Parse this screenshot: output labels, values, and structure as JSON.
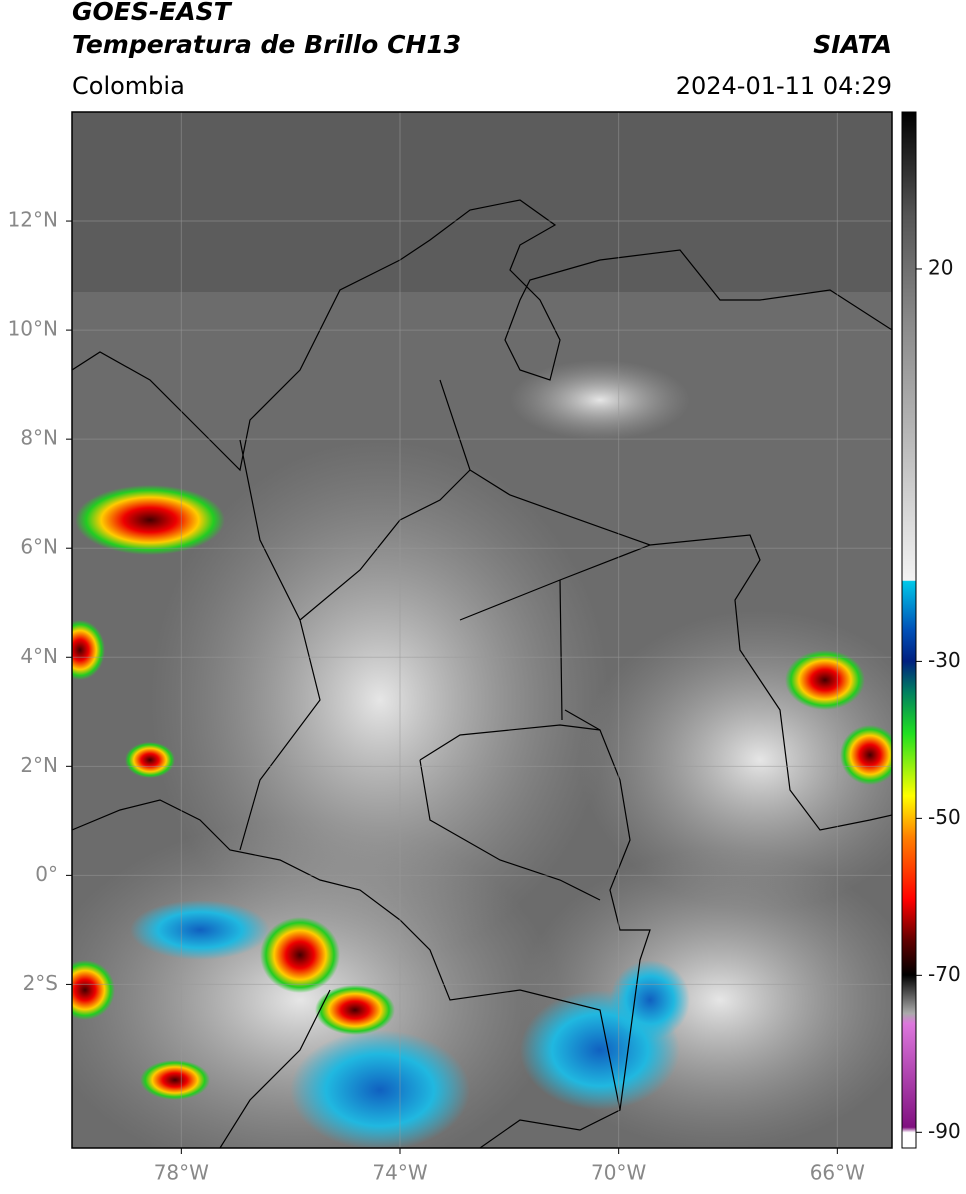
{
  "header": {
    "title": "GOES-EAST",
    "subtitle": "Temperatura de Brillo CH13",
    "region": "Colombia",
    "source": "SIATA",
    "datetime": "2024-01-11 04:29"
  },
  "map": {
    "xlim": [
      -80,
      -65
    ],
    "ylim": [
      -5,
      14
    ],
    "xticks": [
      {
        "value": -78,
        "label": "78°W"
      },
      {
        "value": -74,
        "label": "74°W"
      },
      {
        "value": -70,
        "label": "70°W"
      },
      {
        "value": -66,
        "label": "66°W"
      }
    ],
    "yticks": [
      {
        "value": 12,
        "label": "12°N"
      },
      {
        "value": 10,
        "label": "10°N"
      },
      {
        "value": 8,
        "label": "8°N"
      },
      {
        "value": 6,
        "label": "6°N"
      },
      {
        "value": 4,
        "label": "4°N"
      },
      {
        "value": 2,
        "label": "2°N"
      },
      {
        "value": 0,
        "label": "0°"
      },
      {
        "value": -2,
        "label": "2°S"
      }
    ],
    "grid": true
  },
  "colorbar": {
    "clim": [
      -92,
      40
    ],
    "ticks": [
      20,
      -30,
      -50,
      -70,
      -90
    ]
  }
}
